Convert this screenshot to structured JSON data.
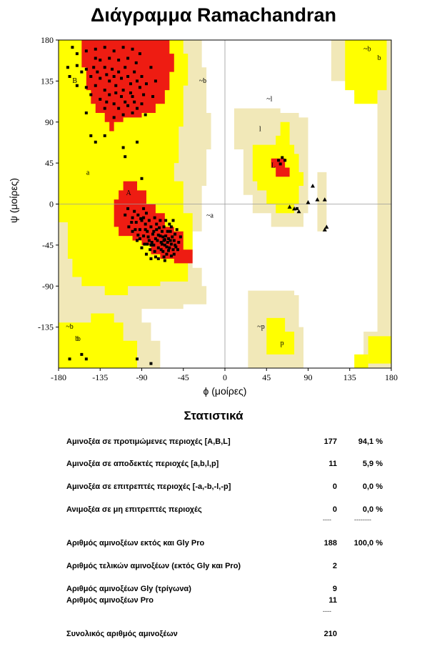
{
  "title": "Διάγραμμα Ramachandran",
  "chart_data": {
    "type": "scatter",
    "title": "Διάγραμμα Ramachandran",
    "xlabel": "ϕ (μοίρες)",
    "ylabel": "ψ (μοίρες)",
    "xlim": [
      -180,
      180
    ],
    "ylim": [
      -180,
      180
    ],
    "xticks": [
      "-180",
      "-135",
      "-90",
      "-45",
      "0",
      "45",
      "90",
      "135",
      "180"
    ],
    "yticks": [
      "180",
      "135",
      "90",
      "45",
      "0",
      "-45",
      "-90",
      "-135"
    ],
    "region_labels": [
      "A",
      "B",
      "L",
      "a",
      "b",
      "l",
      "p",
      "~a",
      "~b",
      "~l",
      "~p"
    ],
    "region_label_display": {
      "B": "B",
      "b": "b",
      "a": "a",
      "A": "A",
      "L": "L",
      "l": "l",
      "~b": "~b",
      "~a": "~a",
      "~l": "~l",
      "~p": "~p",
      "p": "p"
    },
    "region_colors": {
      "most_favoured": "#ee1c12",
      "additional": "#ffff00",
      "generous": "#f1e8b8",
      "disallowed": "#ffffff"
    },
    "series": [
      {
        "name": "",
        "marker": "square",
        "points": [
          [
            -165,
            172
          ],
          [
            -160,
            165
          ],
          [
            -150,
            168
          ],
          [
            -140,
            170
          ],
          [
            -130,
            172
          ],
          [
            -120,
            168
          ],
          [
            -110,
            172
          ],
          [
            -100,
            170
          ],
          [
            -92,
            165
          ],
          [
            -170,
            150
          ],
          [
            -160,
            152
          ],
          [
            -155,
            145
          ],
          [
            -150,
            148
          ],
          [
            -145,
            140
          ],
          [
            -142,
            150
          ],
          [
            -138,
            145
          ],
          [
            -135,
            138
          ],
          [
            -130,
            150
          ],
          [
            -128,
            142
          ],
          [
            -125,
            135
          ],
          [
            -122,
            148
          ],
          [
            -120,
            140
          ],
          [
            -118,
            130
          ],
          [
            -115,
            145
          ],
          [
            -112,
            138
          ],
          [
            -110,
            125
          ],
          [
            -108,
            150
          ],
          [
            -105,
            140
          ],
          [
            -102,
            132
          ],
          [
            -100,
            118
          ],
          [
            -98,
            145
          ],
          [
            -95,
            135
          ],
          [
            -92,
            128
          ],
          [
            -90,
            140
          ],
          [
            -88,
            120
          ],
          [
            -85,
            132
          ],
          [
            -80,
            150
          ],
          [
            -150,
            128
          ],
          [
            -145,
            120
          ],
          [
            -140,
            130
          ],
          [
            -135,
            115
          ],
          [
            -130,
            125
          ],
          [
            -128,
            112
          ],
          [
            -125,
            120
          ],
          [
            -120,
            110
          ],
          [
            -118,
            122
          ],
          [
            -115,
            105
          ],
          [
            -112,
            118
          ],
          [
            -108,
            112
          ],
          [
            -105,
            108
          ],
          [
            -102,
            122
          ],
          [
            -100,
            100
          ],
          [
            -98,
            112
          ],
          [
            -95,
            105
          ],
          [
            -90,
            110
          ],
          [
            -86,
            98
          ],
          [
            -140,
            160
          ],
          [
            -125,
            160
          ],
          [
            -115,
            158
          ],
          [
            -105,
            160
          ],
          [
            -96,
            155
          ],
          [
            -75,
            135
          ],
          [
            -78,
            118
          ],
          [
            -150,
            100
          ],
          [
            -130,
            105
          ],
          [
            -160,
            130
          ],
          [
            -168,
            140
          ],
          [
            -135,
            158
          ],
          [
            -110,
            98
          ],
          [
            -120,
            95
          ],
          [
            -145,
            75
          ],
          [
            -140,
            68
          ],
          [
            -130,
            75
          ],
          [
            -110,
            62
          ],
          [
            -95,
            68
          ],
          [
            -108,
            52
          ],
          [
            -90,
            28
          ],
          [
            -108,
            -12
          ],
          [
            -105,
            -5
          ],
          [
            -100,
            -15
          ],
          [
            -98,
            -8
          ],
          [
            -96,
            -20
          ],
          [
            -94,
            -12
          ],
          [
            -92,
            -28
          ],
          [
            -90,
            -18
          ],
          [
            -88,
            -35
          ],
          [
            -86,
            -22
          ],
          [
            -85,
            -10
          ],
          [
            -84,
            -30
          ],
          [
            -82,
            -40
          ],
          [
            -80,
            -25
          ],
          [
            -78,
            -33
          ],
          [
            -77,
            -45
          ],
          [
            -75,
            -38
          ],
          [
            -74,
            -28
          ],
          [
            -72,
            -48
          ],
          [
            -70,
            -35
          ],
          [
            -69,
            -42
          ],
          [
            -68,
            -30
          ],
          [
            -67,
            -52
          ],
          [
            -66,
            -40
          ],
          [
            -65,
            -45
          ],
          [
            -64,
            -35
          ],
          [
            -63,
            -55
          ],
          [
            -62,
            -42
          ],
          [
            -61,
            -38
          ],
          [
            -60,
            -48
          ],
          [
            -59,
            -30
          ],
          [
            -58,
            -44
          ],
          [
            -57,
            -36
          ],
          [
            -56,
            -50
          ],
          [
            -55,
            -40
          ],
          [
            -54,
            -33
          ],
          [
            -53,
            -47
          ],
          [
            -52,
            -28
          ],
          [
            -50,
            -42
          ],
          [
            -48,
            -36
          ],
          [
            -66,
            -25
          ],
          [
            -70,
            -18
          ],
          [
            -76,
            -15
          ],
          [
            -82,
            -18
          ],
          [
            -88,
            -5
          ],
          [
            -95,
            -40
          ],
          [
            -90,
            -48
          ],
          [
            -85,
            -55
          ],
          [
            -80,
            -60
          ],
          [
            -72,
            -60
          ],
          [
            -65,
            -62
          ],
          [
            -58,
            -57
          ],
          [
            -76,
            -52
          ],
          [
            -84,
            -44
          ],
          [
            -92,
            -38
          ],
          [
            -100,
            -30
          ],
          [
            -104,
            -25
          ],
          [
            -64,
            -18
          ],
          [
            -60,
            -22
          ],
          [
            -56,
            -18
          ],
          [
            -73,
            -40
          ],
          [
            -79,
            -42
          ],
          [
            -67,
            -36
          ],
          [
            -62,
            -30
          ],
          [
            -71,
            -26
          ],
          [
            -87,
            -44
          ],
          [
            -81,
            -50
          ],
          [
            -69,
            -50
          ],
          [
            -75,
            -58
          ],
          [
            -63,
            -47
          ],
          [
            -55,
            -55
          ],
          [
            -51,
            -50
          ],
          [
            -58,
            -25
          ],
          [
            -74,
            -22
          ],
          [
            -86,
            -28
          ],
          [
            -91,
            -16
          ],
          [
            -97,
            -28
          ],
          [
            -83,
            -36
          ],
          [
            -77,
            -30
          ],
          [
            -68,
            -44
          ],
          [
            -61,
            -51
          ],
          [
            -65,
            -39
          ],
          [
            -72,
            -34
          ],
          [
            -80,
            -45
          ],
          [
            -88,
            -15
          ],
          [
            -94,
            -34
          ],
          [
            -101,
            -20
          ],
          [
            -66,
            -58
          ],
          [
            -59,
            -40
          ],
          [
            -54,
            -45
          ],
          [
            62,
            51
          ],
          [
            65,
            48
          ],
          [
            60,
            44
          ],
          [
            58,
            48
          ],
          [
            78,
            -5
          ],
          [
            -95,
            -170
          ],
          [
            -155,
            -165
          ],
          [
            -80,
            -175
          ],
          [
            -150,
            -170
          ],
          [
            -168,
            -170
          ]
        ]
      },
      {
        "name": "",
        "marker": "triangle",
        "points": [
          [
            95,
            20
          ],
          [
            100,
            5
          ],
          [
            108,
            5
          ],
          [
            90,
            2
          ],
          [
            75,
            -5
          ],
          [
            80,
            -8
          ],
          [
            110,
            -25
          ],
          [
            108,
            -28
          ],
          [
            70,
            -3
          ]
        ]
      }
    ]
  },
  "stats": {
    "title": "Στατιστικά",
    "rows": [
      {
        "label": "Αμινοξέα σε προτιμώμενες περιοχές [A,B,L]",
        "count": "177",
        "percent": "94,1 %"
      },
      {
        "label": "Αμινοξέα σε αποδεκτές περιοχές [a,b,l,p]",
        "count": "11",
        "percent": "5,9 %"
      },
      {
        "label": "Αμινοξέα σε επιτρεπτές περιοχές  [-a,-b,-l,-p]",
        "count": "0",
        "percent": "0,0 %"
      },
      {
        "label": "Ανιμοξέα σε μη επιτρεπτές περιοχές",
        "count": "0",
        "percent": "0,0 %"
      },
      {
        "label": "Αριθμός αμινοξέων εκτός και Gly Pro",
        "count": "188",
        "percent": "100,0 %"
      },
      {
        "label": "Αριθμός τελικών αμινοξέων (εκτός Gly και Pro)",
        "count": "2",
        "percent": ""
      },
      {
        "label": "Αριθμός αμινοξέων Gly (τρίγωνα)",
        "count": "9",
        "percent": ""
      },
      {
        "label": "Αριθμός αμινοξέων Pro",
        "count": "11",
        "percent": ""
      },
      {
        "label": "Συνολικός αριθμός αμινοξέων",
        "count": "210",
        "percent": ""
      }
    ],
    "sep_count": "----",
    "sep_percent": "--------"
  }
}
